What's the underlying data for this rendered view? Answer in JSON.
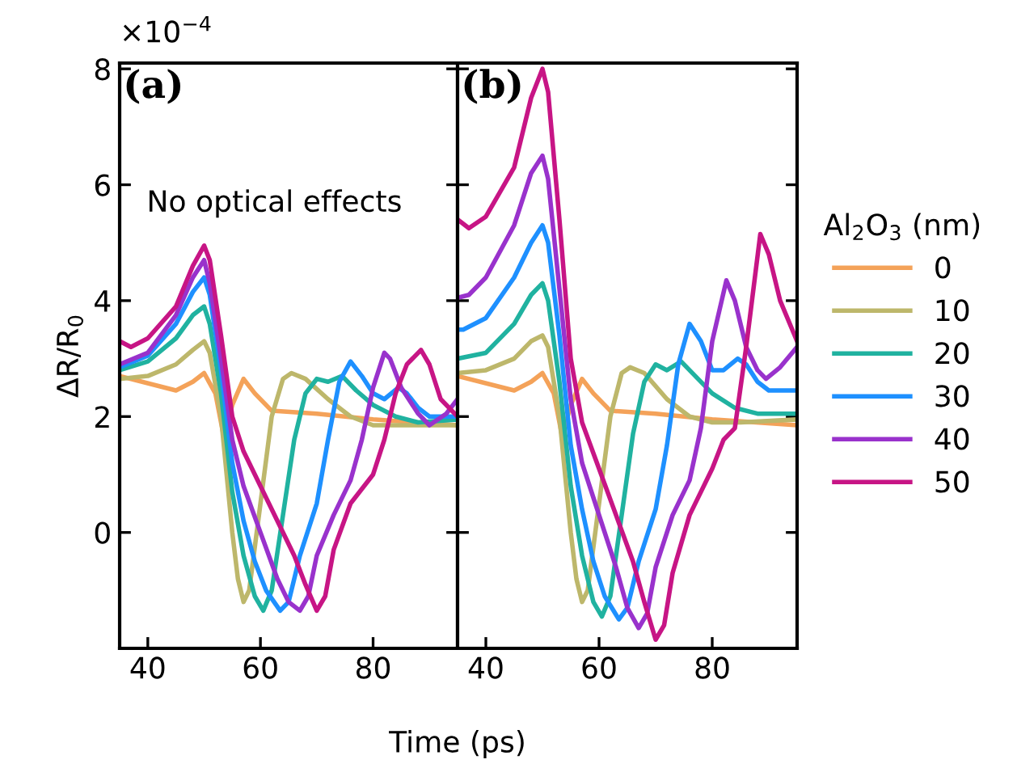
{
  "chart_data": [
    {
      "type": "line",
      "ylabel": "ΔR/R$_{0}$",
      "xlabel": "Time (ps)",
      "annotations": [
        "×10$^{−4}$",
        "(a)",
        "No optical effects"
      ],
      "xlim": [
        35,
        95
      ],
      "xticks": [
        40,
        60,
        80
      ],
      "ylim": [
        -2.0,
        8.1
      ],
      "yticks": [
        0,
        2,
        4,
        6,
        8
      ],
      "grid": false,
      "legend": false,
      "line_style": "solid",
      "marker": "none",
      "series": [
        {
          "color": "#f4a259",
          "x": [
            35,
            45,
            48,
            50,
            52,
            53.5,
            55,
            57,
            59,
            62,
            70,
            80,
            95
          ],
          "values": [
            2.7,
            2.45,
            2.6,
            2.75,
            2.4,
            1.65,
            2.2,
            2.65,
            2.4,
            2.1,
            2.05,
            1.95,
            1.85
          ]
        },
        {
          "color": "#bdb76b",
          "x": [
            35,
            40,
            45,
            48,
            50,
            51,
            53,
            55,
            56,
            57,
            58,
            60,
            62,
            64,
            65.5,
            68,
            72,
            76,
            80,
            85,
            95
          ],
          "values": [
            2.65,
            2.7,
            2.9,
            3.15,
            3.3,
            3.1,
            2.0,
            0.0,
            -0.8,
            -1.2,
            -1.0,
            0.5,
            2.0,
            2.65,
            2.75,
            2.65,
            2.3,
            2.0,
            1.85,
            1.85,
            1.85
          ]
        },
        {
          "color": "#20b2a0",
          "x": [
            35,
            40,
            45,
            48,
            50,
            51,
            53,
            55,
            57,
            59,
            60.5,
            62,
            64,
            66,
            68,
            70,
            72,
            74.5,
            77,
            80,
            84,
            88,
            95
          ],
          "values": [
            2.8,
            2.95,
            3.35,
            3.75,
            3.9,
            3.6,
            2.4,
            0.7,
            -0.4,
            -1.1,
            -1.35,
            -1.0,
            0.3,
            1.6,
            2.4,
            2.65,
            2.6,
            2.7,
            2.45,
            2.2,
            2.0,
            1.9,
            1.95
          ]
        },
        {
          "color": "#1e90ff",
          "x": [
            35,
            40,
            45,
            48,
            50,
            51,
            53,
            55,
            57,
            59,
            61,
            63.5,
            65,
            67,
            70,
            72,
            74,
            76,
            78,
            80,
            82,
            84.5,
            86,
            88,
            90,
            95
          ],
          "values": [
            2.85,
            3.05,
            3.6,
            4.15,
            4.4,
            4.1,
            2.8,
            1.2,
            0.2,
            -0.5,
            -1.0,
            -1.35,
            -1.2,
            -0.4,
            0.5,
            1.6,
            2.6,
            2.95,
            2.7,
            2.4,
            2.3,
            2.5,
            2.4,
            2.15,
            2.0,
            2.0
          ]
        },
        {
          "color": "#9932cc",
          "x": [
            35,
            40,
            45,
            48,
            50,
            51,
            53,
            55,
            57,
            60,
            63,
            65,
            67,
            68.5,
            70,
            73,
            76,
            78,
            80,
            82,
            83,
            85,
            88,
            90,
            93,
            95
          ],
          "values": [
            2.9,
            3.1,
            3.75,
            4.4,
            4.7,
            4.3,
            3.0,
            1.6,
            0.8,
            0.0,
            -0.8,
            -1.2,
            -1.35,
            -1.1,
            -0.4,
            0.3,
            0.9,
            1.6,
            2.5,
            3.1,
            3.0,
            2.5,
            2.05,
            1.85,
            2.05,
            2.3
          ]
        },
        {
          "color": "#c71585",
          "x": [
            35,
            37,
            40,
            45,
            48,
            50,
            51,
            53,
            55,
            57,
            60,
            63,
            66,
            68,
            70,
            71.5,
            73,
            76,
            80,
            82,
            84,
            86,
            88.5,
            90,
            92,
            95
          ],
          "values": [
            3.3,
            3.2,
            3.35,
            3.9,
            4.6,
            4.95,
            4.7,
            3.4,
            2.0,
            1.4,
            0.8,
            0.2,
            -0.4,
            -0.9,
            -1.35,
            -1.1,
            -0.3,
            0.5,
            1.0,
            1.6,
            2.4,
            2.9,
            3.15,
            2.9,
            2.3,
            2.0
          ]
        }
      ]
    },
    {
      "type": "line",
      "annotations": [
        "(b)"
      ],
      "xlim": [
        35,
        95
      ],
      "xticks": [
        40,
        60,
        80
      ],
      "ylim": [
        -2.0,
        8.1
      ],
      "yticks": [
        0,
        2,
        4,
        6,
        8
      ],
      "tick_labels": "x",
      "grid": false,
      "legend": "right",
      "legend_title": "Al$_{2}$O$_{3}$ (nm)",
      "line_style": "solid",
      "marker": "none",
      "series": [
        {
          "name": "0",
          "color": "#f4a259",
          "x": [
            35,
            45,
            48,
            50,
            52,
            53.5,
            55,
            57,
            59,
            62,
            70,
            80,
            95
          ],
          "values": [
            2.7,
            2.45,
            2.6,
            2.75,
            2.4,
            1.65,
            2.2,
            2.65,
            2.4,
            2.1,
            2.05,
            1.95,
            1.85
          ]
        },
        {
          "name": "10",
          "color": "#bdb76b",
          "x": [
            35,
            40,
            45,
            48,
            50,
            51,
            53,
            55,
            56,
            57,
            58,
            60,
            62,
            64,
            65.5,
            68,
            72,
            76,
            80,
            85,
            95
          ],
          "values": [
            2.75,
            2.8,
            3.0,
            3.3,
            3.4,
            3.2,
            2.0,
            0.0,
            -0.8,
            -1.2,
            -1.0,
            0.5,
            2.0,
            2.75,
            2.85,
            2.75,
            2.3,
            2.0,
            1.9,
            1.9,
            1.95
          ]
        },
        {
          "name": "20",
          "color": "#20b2a0",
          "x": [
            35,
            40,
            45,
            48,
            50,
            51,
            53,
            55,
            57,
            59,
            60.5,
            62,
            64,
            66,
            68,
            70,
            72,
            74.5,
            77,
            80,
            84,
            88,
            95
          ],
          "values": [
            3.0,
            3.1,
            3.6,
            4.1,
            4.3,
            4.0,
            2.6,
            0.8,
            -0.4,
            -1.2,
            -1.45,
            -1.1,
            0.3,
            1.7,
            2.6,
            2.9,
            2.8,
            2.95,
            2.7,
            2.4,
            2.15,
            2.05,
            2.05
          ]
        },
        {
          "name": "30",
          "color": "#1e90ff",
          "x": [
            35,
            36,
            40,
            45,
            48,
            50,
            51,
            53,
            55,
            57,
            59,
            61,
            63.5,
            65,
            67,
            70,
            72,
            74,
            76,
            78,
            80,
            82,
            84.5,
            86,
            88,
            90,
            95
          ],
          "values": [
            3.5,
            3.5,
            3.7,
            4.4,
            5.0,
            5.3,
            5.0,
            3.4,
            1.5,
            0.4,
            -0.5,
            -1.1,
            -1.5,
            -1.3,
            -0.5,
            0.4,
            1.5,
            2.9,
            3.6,
            3.3,
            2.8,
            2.8,
            3.0,
            2.9,
            2.6,
            2.45,
            2.45
          ]
        },
        {
          "name": "40",
          "color": "#9932cc",
          "x": [
            35,
            37,
            40,
            45,
            48,
            50,
            51,
            53,
            55,
            57,
            60,
            63,
            65,
            67,
            68.5,
            70,
            73,
            76,
            78,
            80,
            82.5,
            84,
            86,
            88,
            89.5,
            92,
            95
          ],
          "values": [
            4.05,
            4.1,
            4.4,
            5.3,
            6.2,
            6.5,
            6.1,
            4.2,
            2.3,
            1.2,
            0.3,
            -0.6,
            -1.3,
            -1.65,
            -1.4,
            -0.6,
            0.3,
            0.9,
            1.8,
            3.3,
            4.35,
            4.0,
            3.2,
            2.8,
            2.65,
            2.85,
            3.2
          ]
        },
        {
          "name": "50",
          "color": "#c71585",
          "x": [
            35,
            37,
            40,
            45,
            48,
            50,
            51,
            53,
            55,
            57,
            60,
            63,
            66,
            68,
            70,
            71.5,
            73,
            76,
            80,
            82,
            84,
            86,
            88.5,
            90,
            92,
            95
          ],
          "values": [
            5.4,
            5.25,
            5.45,
            6.3,
            7.5,
            8.0,
            7.6,
            5.4,
            3.0,
            1.9,
            1.1,
            0.3,
            -0.5,
            -1.2,
            -1.85,
            -1.6,
            -0.7,
            0.3,
            1.1,
            1.6,
            1.8,
            3.2,
            5.15,
            4.8,
            4.0,
            3.3
          ]
        }
      ]
    }
  ]
}
